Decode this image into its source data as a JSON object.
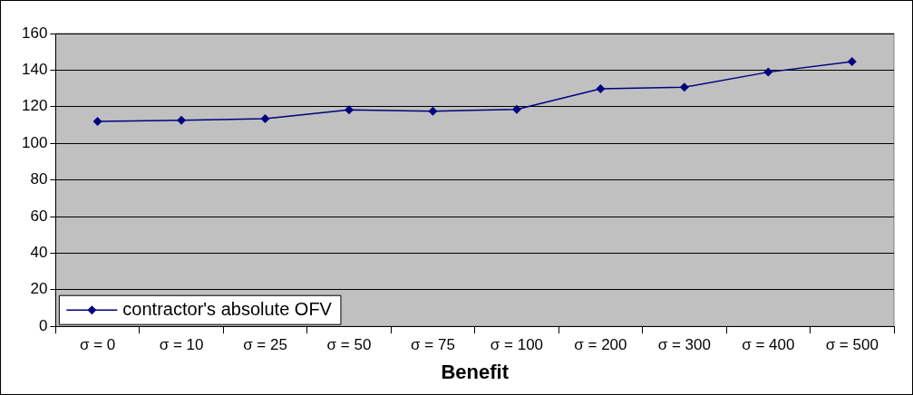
{
  "chart_data": {
    "type": "line",
    "xlabel": "Benefit",
    "categories": [
      "σ = 0",
      "σ = 10",
      "σ = 25",
      "σ = 50",
      "σ = 75",
      "σ = 100",
      "σ = 200",
      "σ = 300",
      "σ = 400",
      "σ = 500"
    ],
    "series": [
      {
        "name": "contractor's absolute OFV",
        "color": "#000080",
        "values": [
          112,
          112.6,
          113.5,
          118.3,
          117.6,
          118.5,
          129.8,
          130.7,
          138.9,
          144.6
        ]
      }
    ],
    "ylim": [
      0,
      160
    ],
    "yticks": [
      0,
      20,
      40,
      60,
      80,
      100,
      120,
      140,
      160
    ],
    "grid": "y",
    "legend": "bottom left",
    "marker": "diamond",
    "line_style": "solid"
  }
}
